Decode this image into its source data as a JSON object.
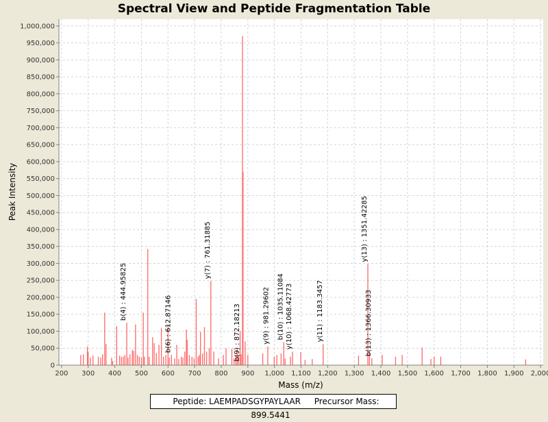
{
  "chart_data": {
    "type": "bar",
    "title": "Spectral View and Peptide Fragmentation Table",
    "xlabel": "Mass (m/z)",
    "ylabel": "Peak Intensity",
    "xlim": [
      190,
      2010
    ],
    "ylim": [
      0,
      1020000
    ],
    "grid": true,
    "color": "#ff6666",
    "x_ticks": [
      "200",
      "300",
      "400",
      "500",
      "600",
      "700",
      "800",
      "900",
      "1,000",
      "1,100",
      "1,200",
      "1,300",
      "1,400",
      "1,500",
      "1,600",
      "1,700",
      "1,800",
      "1,900",
      "2,000"
    ],
    "y_ticks": [
      "0",
      "50,000",
      "100,000",
      "150,000",
      "200,000",
      "250,000",
      "300,000",
      "350,000",
      "400,000",
      "450,000",
      "500,000",
      "550,000",
      "600,000",
      "650,000",
      "700,000",
      "750,000",
      "800,000",
      "850,000",
      "900,000",
      "950,000",
      "1,000,000"
    ],
    "peaks": [
      [
        272,
        30000
      ],
      [
        282,
        32000
      ],
      [
        297,
        55000
      ],
      [
        300,
        40000
      ],
      [
        308,
        22000
      ],
      [
        318,
        28000
      ],
      [
        338,
        25000
      ],
      [
        347,
        22000
      ],
      [
        354,
        32000
      ],
      [
        362,
        155000
      ],
      [
        367,
        62000
      ],
      [
        388,
        22000
      ],
      [
        392,
        12000
      ],
      [
        407,
        115000
      ],
      [
        418,
        28000
      ],
      [
        425,
        25000
      ],
      [
        432,
        25000
      ],
      [
        438,
        30000
      ],
      [
        445,
        125000
      ],
      [
        450,
        22000
      ],
      [
        457,
        32000
      ],
      [
        466,
        45000
      ],
      [
        471,
        42000
      ],
      [
        478,
        120000
      ],
      [
        485,
        30000
      ],
      [
        492,
        25000
      ],
      [
        500,
        22000
      ],
      [
        507,
        155000
      ],
      [
        511,
        25000
      ],
      [
        524,
        342000
      ],
      [
        529,
        25000
      ],
      [
        542,
        82000
      ],
      [
        548,
        65000
      ],
      [
        556,
        35000
      ],
      [
        566,
        60000
      ],
      [
        575,
        110000
      ],
      [
        583,
        25000
      ],
      [
        592,
        30000
      ],
      [
        600,
        118000
      ],
      [
        605,
        22000
      ],
      [
        613,
        30000
      ],
      [
        625,
        20000
      ],
      [
        633,
        60000
      ],
      [
        640,
        18000
      ],
      [
        650,
        25000
      ],
      [
        656,
        22000
      ],
      [
        663,
        40000
      ],
      [
        669,
        105000
      ],
      [
        672,
        75000
      ],
      [
        680,
        30000
      ],
      [
        690,
        25000
      ],
      [
        698,
        20000
      ],
      [
        706,
        195000
      ],
      [
        713,
        25000
      ],
      [
        718,
        30000
      ],
      [
        722,
        98000
      ],
      [
        730,
        35000
      ],
      [
        737,
        112000
      ],
      [
        745,
        40000
      ],
      [
        755,
        50000
      ],
      [
        761,
        248000
      ],
      [
        772,
        40000
      ],
      [
        790,
        20000
      ],
      [
        808,
        30000
      ],
      [
        818,
        50000
      ],
      [
        840,
        48000
      ],
      [
        848,
        20000
      ],
      [
        855,
        30000
      ],
      [
        860,
        50000
      ],
      [
        865,
        30000
      ],
      [
        871,
        100000
      ],
      [
        875,
        32000
      ],
      [
        880,
        970000
      ],
      [
        882,
        570000
      ],
      [
        890,
        70000
      ],
      [
        900,
        30000
      ],
      [
        956,
        35000
      ],
      [
        975,
        55000
      ],
      [
        999,
        25000
      ],
      [
        1009,
        30000
      ],
      [
        1025,
        35000
      ],
      [
        1035,
        68000
      ],
      [
        1040,
        20000
      ],
      [
        1060,
        25000
      ],
      [
        1068,
        40000
      ],
      [
        1099,
        38000
      ],
      [
        1115,
        15000
      ],
      [
        1142,
        18000
      ],
      [
        1183,
        62000
      ],
      [
        1316,
        28000
      ],
      [
        1351,
        298000
      ],
      [
        1357,
        40000
      ],
      [
        1366,
        20000
      ],
      [
        1405,
        30000
      ],
      [
        1455,
        25000
      ],
      [
        1480,
        30000
      ],
      [
        1555,
        52000
      ],
      [
        1588,
        18000
      ],
      [
        1600,
        25000
      ],
      [
        1625,
        25000
      ],
      [
        1944,
        17000
      ]
    ],
    "annotations": [
      {
        "mz": 444.95825,
        "label": "b(4) : 444.95825",
        "y": 125000
      },
      {
        "mz": 612.87146,
        "label": "b(6) : 612.87146",
        "y": 30000
      },
      {
        "mz": 761.31885,
        "label": "y(7) : 761.31885",
        "y": 248000
      },
      {
        "mz": 872.18213,
        "label": "b(9) : 872.18213",
        "y": 5000
      },
      {
        "mz": 981.29602,
        "label": "y(9) : 981.29602",
        "y": 55000
      },
      {
        "mz": 1035.11084,
        "label": "b(10) : 1035.11084",
        "y": 68000
      },
      {
        "mz": 1068.42773,
        "label": "y(10) : 1068.42773",
        "y": 40000
      },
      {
        "mz": 1183.3457,
        "label": "y(11) : 1183.3457",
        "y": 62000
      },
      {
        "mz": 1351.42285,
        "label": "y(13) : 1351.42285",
        "y": 298000
      },
      {
        "mz": 1366.30933,
        "label": "b(13) : 1366.30933",
        "y": 20000
      }
    ]
  },
  "info": {
    "peptide": "Peptide: LAEMPADSGYPAYLAAR",
    "precursor": "Precursor Mass: 899.5441"
  }
}
